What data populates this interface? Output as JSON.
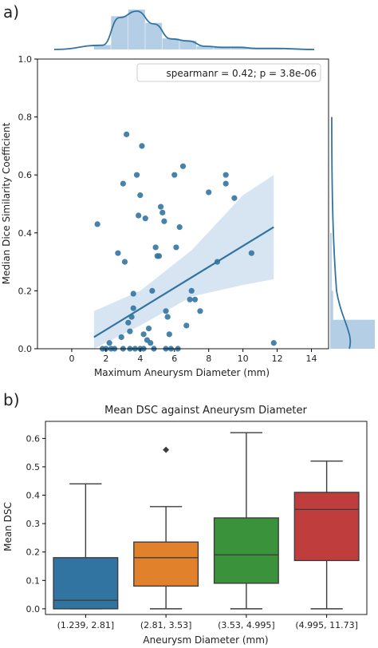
{
  "panel_labels": {
    "a": "a)",
    "b": "b)"
  },
  "colors": {
    "scatter_blue": "#3274a1",
    "band_blue": "#cadcee",
    "hist_blue": "#a7c5e2",
    "box_blue": "#3274a1",
    "box_orange": "#e1812c",
    "box_green": "#3a923a",
    "box_red": "#c03d3e"
  },
  "chart_data": [
    {
      "type": "scatter",
      "panel": "a",
      "title": "",
      "xlabel": "Maximum Aneurysm Diameter (mm)",
      "ylabel": "Median Dice Similarity Coefficient",
      "xlim": [
        -2,
        15
      ],
      "ylim": [
        0,
        1.0
      ],
      "xticks": [
        0,
        2,
        4,
        6,
        8,
        10,
        12,
        14
      ],
      "yticks": [
        0.0,
        0.2,
        0.4,
        0.6,
        0.8,
        1.0
      ],
      "xtick_labels": [
        "0",
        "2",
        "4",
        "6",
        "8",
        "10",
        "12",
        "14"
      ],
      "ytick_labels": [
        "0.0",
        "0.2",
        "0.4",
        "0.6",
        "0.8",
        "1.0"
      ],
      "grid": false,
      "annotation": "spearmanr = 0.42; p = 3.8e-06",
      "annotation_position": "top-right",
      "points": [
        {
          "x": 1.5,
          "y": 0.43
        },
        {
          "x": 2.0,
          "y": 0.0
        },
        {
          "x": 2.2,
          "y": 0.02
        },
        {
          "x": 2.5,
          "y": 0.0
        },
        {
          "x": 2.7,
          "y": 0.33
        },
        {
          "x": 2.9,
          "y": 0.04
        },
        {
          "x": 3.0,
          "y": 0.57
        },
        {
          "x": 3.1,
          "y": 0.3
        },
        {
          "x": 3.2,
          "y": 0.74
        },
        {
          "x": 3.3,
          "y": 0.09
        },
        {
          "x": 3.4,
          "y": 0.06
        },
        {
          "x": 3.5,
          "y": 0.11
        },
        {
          "x": 3.6,
          "y": 0.14
        },
        {
          "x": 3.6,
          "y": 0.19
        },
        {
          "x": 3.7,
          "y": 0.0
        },
        {
          "x": 3.8,
          "y": 0.6
        },
        {
          "x": 3.9,
          "y": 0.46
        },
        {
          "x": 4.0,
          "y": 0.53
        },
        {
          "x": 4.0,
          "y": 0.0
        },
        {
          "x": 4.1,
          "y": 0.7
        },
        {
          "x": 4.2,
          "y": 0.05
        },
        {
          "x": 4.3,
          "y": 0.45
        },
        {
          "x": 4.4,
          "y": 0.03
        },
        {
          "x": 4.5,
          "y": 0.07
        },
        {
          "x": 4.6,
          "y": 0.02
        },
        {
          "x": 4.7,
          "y": 0.2
        },
        {
          "x": 4.8,
          "y": 0.0
        },
        {
          "x": 4.9,
          "y": 0.35
        },
        {
          "x": 5.0,
          "y": 0.32
        },
        {
          "x": 5.1,
          "y": 0.32
        },
        {
          "x": 5.2,
          "y": 0.49
        },
        {
          "x": 5.3,
          "y": 0.47
        },
        {
          "x": 5.4,
          "y": 0.44
        },
        {
          "x": 5.5,
          "y": 0.13
        },
        {
          "x": 5.6,
          "y": 0.11
        },
        {
          "x": 5.7,
          "y": 0.05
        },
        {
          "x": 5.8,
          "y": 0.0
        },
        {
          "x": 6.0,
          "y": 0.6
        },
        {
          "x": 6.1,
          "y": 0.35
        },
        {
          "x": 6.3,
          "y": 0.42
        },
        {
          "x": 6.5,
          "y": 0.63
        },
        {
          "x": 6.7,
          "y": 0.08
        },
        {
          "x": 6.9,
          "y": 0.17
        },
        {
          "x": 7.0,
          "y": 0.2
        },
        {
          "x": 7.2,
          "y": 0.17
        },
        {
          "x": 7.5,
          "y": 0.13
        },
        {
          "x": 8.0,
          "y": 0.54
        },
        {
          "x": 8.5,
          "y": 0.3
        },
        {
          "x": 9.0,
          "y": 0.6
        },
        {
          "x": 9.0,
          "y": 0.57
        },
        {
          "x": 9.5,
          "y": 0.52
        },
        {
          "x": 10.5,
          "y": 0.33
        },
        {
          "x": 11.8,
          "y": 0.02
        },
        {
          "x": 1.8,
          "y": 0.0
        },
        {
          "x": 2.3,
          "y": 0.0
        },
        {
          "x": 3.0,
          "y": 0.0
        },
        {
          "x": 3.4,
          "y": 0.0
        },
        {
          "x": 4.2,
          "y": 0.0
        },
        {
          "x": 5.5,
          "y": 0.0
        },
        {
          "x": 6.2,
          "y": 0.0
        }
      ],
      "regression": {
        "x_start": 1.3,
        "y_start": 0.04,
        "x_end": 11.8,
        "y_end": 0.42
      },
      "ci_band": {
        "x": [
          1.3,
          4,
          7,
          10,
          11.8
        ],
        "lower": [
          -0.04,
          0.08,
          0.18,
          0.22,
          0.24
        ],
        "upper": [
          0.13,
          0.2,
          0.34,
          0.53,
          0.6
        ]
      },
      "top_hist": {
        "bins": [
          1.3,
          2.3,
          3.3,
          4.3,
          5.3,
          6.3,
          7.3,
          8.3,
          9.3,
          10.3,
          11.3,
          12.3
        ],
        "counts": [
          4,
          30,
          36,
          24,
          10,
          8,
          3,
          2,
          2,
          1,
          1
        ]
      },
      "right_hist": {
        "bins": [
          0.0,
          0.1,
          0.2,
          0.3,
          0.35,
          0.4
        ],
        "counts": [
          30,
          2,
          1,
          1,
          1
        ]
      }
    },
    {
      "type": "box",
      "panel": "b",
      "title": "Mean DSC against Aneurysm Diameter",
      "xlabel": "Aneurysm Diameter (mm)",
      "ylabel": "Mean DSC",
      "ylim": [
        -0.02,
        0.66
      ],
      "yticks": [
        0.0,
        0.1,
        0.2,
        0.3,
        0.4,
        0.5,
        0.6
      ],
      "ytick_labels": [
        "0.0",
        "0.1",
        "0.2",
        "0.3",
        "0.4",
        "0.5",
        "0.6"
      ],
      "grid": false,
      "categories": [
        "(1.239, 2.81]",
        "(2.81, 3.53]",
        "(3.53, 4.995]",
        "(4.995, 11.73]"
      ],
      "boxes": [
        {
          "min": 0.0,
          "q1": 0.0,
          "median": 0.03,
          "q3": 0.18,
          "max": 0.44,
          "outliers": []
        },
        {
          "min": 0.0,
          "q1": 0.08,
          "median": 0.18,
          "q3": 0.235,
          "max": 0.36,
          "outliers": [
            0.56
          ]
        },
        {
          "min": 0.0,
          "q1": 0.09,
          "median": 0.19,
          "q3": 0.32,
          "max": 0.62,
          "outliers": []
        },
        {
          "min": 0.0,
          "q1": 0.17,
          "median": 0.35,
          "q3": 0.41,
          "max": 0.52,
          "outliers": []
        }
      ]
    }
  ]
}
